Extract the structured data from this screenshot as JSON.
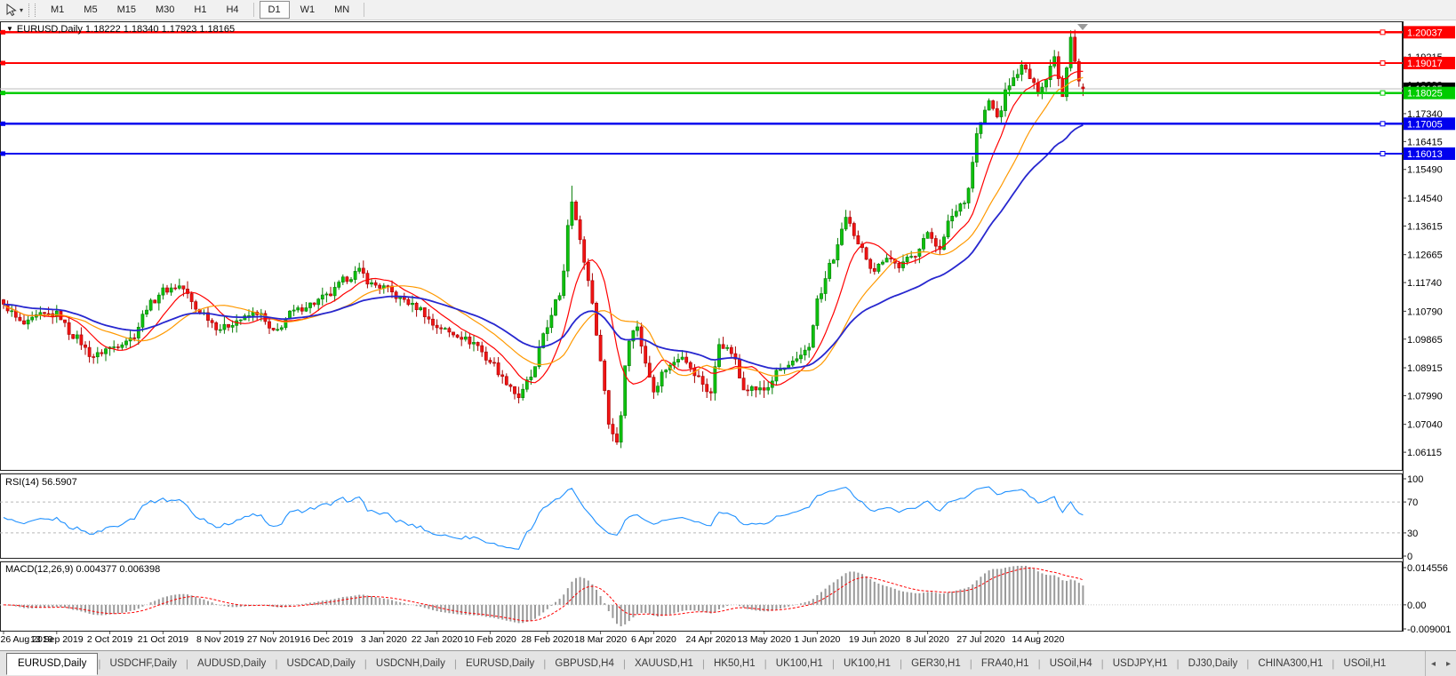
{
  "toolbar": {
    "tool_icon": "cursor-pointer-icon",
    "timeframes": [
      {
        "label": "M1",
        "active": false
      },
      {
        "label": "M5",
        "active": false
      },
      {
        "label": "M15",
        "active": false
      },
      {
        "label": "M30",
        "active": false
      },
      {
        "label": "H1",
        "active": false
      },
      {
        "label": "H4",
        "active": false
      },
      {
        "label": "D1",
        "active": true
      },
      {
        "label": "W1",
        "active": false
      },
      {
        "label": "MN",
        "active": false
      }
    ]
  },
  "chart": {
    "title_line": "EURUSD,Daily 1.18222 1.18340 1.17923 1.18165",
    "symbol": "EURUSD",
    "period": "Daily"
  },
  "indicators": {
    "rsi": {
      "label": "RSI(14) 56.5907",
      "value": 56.5907,
      "color": "#1e90ff",
      "axis": [
        {
          "value": 100,
          "label": "100"
        },
        {
          "value": 70,
          "label": "70"
        },
        {
          "value": 30,
          "label": "30"
        },
        {
          "value": 0,
          "label": "0"
        }
      ],
      "dashed_levels": [
        70,
        30
      ]
    },
    "macd": {
      "label": "MACD(12,26,9) 0.004377 0.006398",
      "macd_value": 0.004377,
      "signal_value": 0.006398,
      "axis": [
        {
          "value": 0.014556,
          "label": "0.014556"
        },
        {
          "value": 0,
          "label": "0.00"
        },
        {
          "value": -0.009001,
          "label": "-0.009001"
        }
      ],
      "hist_color": "#9a9a9a",
      "signal_color": "#ff0000"
    }
  },
  "price_axis": {
    "ticks": [
      1.19215,
      1.1829,
      1.1734,
      1.16415,
      1.1549,
      1.1454,
      1.13615,
      1.12665,
      1.1174,
      1.1079,
      1.09865,
      1.08915,
      1.0799,
      1.0704,
      1.06115
    ],
    "current_price": {
      "value": 1.18165,
      "label": "1.18165",
      "box_color": "#000000"
    }
  },
  "hlines": [
    {
      "price": 1.20037,
      "label": "1.20037",
      "color": "#ff0000"
    },
    {
      "price": 1.19017,
      "label": "1.19017",
      "color": "#ff0000"
    },
    {
      "price": 1.18025,
      "label": "1.18025",
      "color": "#00cc00"
    },
    {
      "price": 1.17005,
      "label": "1.17005",
      "color": "#0000ee"
    },
    {
      "price": 1.16013,
      "label": "1.16013",
      "color": "#0000ee"
    }
  ],
  "bid_line": {
    "price": 1.18165,
    "color": "#bdbdbd"
  },
  "date_axis": {
    "labels": [
      {
        "label": "26 Aug 2019",
        "i": 0
      },
      {
        "label": "13 Sep 2019",
        "i": 13
      },
      {
        "label": "2 Oct 2019",
        "i": 26
      },
      {
        "label": "21 Oct 2019",
        "i": 39
      },
      {
        "label": "8 Nov 2019",
        "i": 53
      },
      {
        "label": "27 Nov 2019",
        "i": 66
      },
      {
        "label": "16 Dec 2019",
        "i": 79
      },
      {
        "label": "3 Jan 2020",
        "i": 93
      },
      {
        "label": "22 Jan 2020",
        "i": 106
      },
      {
        "label": "10 Feb 2020",
        "i": 119
      },
      {
        "label": "28 Feb 2020",
        "i": 133
      },
      {
        "label": "18 Mar 2020",
        "i": 146
      },
      {
        "label": "6 Apr 2020",
        "i": 159
      },
      {
        "label": "24 Apr 2020",
        "i": 173
      },
      {
        "label": "13 May 2020",
        "i": 186
      },
      {
        "label": "1 Jun 2020",
        "i": 199
      },
      {
        "label": "19 Jun 2020",
        "i": 213
      },
      {
        "label": "8 Jul 2020",
        "i": 226
      },
      {
        "label": "27 Jul 2020",
        "i": 239
      },
      {
        "label": "14 Aug 2020",
        "i": 253
      }
    ]
  },
  "tabs": [
    {
      "label": "EURUSD,Daily",
      "active": true
    },
    {
      "label": "USDCHF,Daily",
      "active": false
    },
    {
      "label": "AUDUSD,Daily",
      "active": false
    },
    {
      "label": "USDCAD,Daily",
      "active": false
    },
    {
      "label": "USDCNH,Daily",
      "active": false
    },
    {
      "label": "EURUSD,Daily",
      "active": false
    },
    {
      "label": "GBPUSD,H4",
      "active": false
    },
    {
      "label": "XAUUSD,H1",
      "active": false
    },
    {
      "label": "HK50,H1",
      "active": false
    },
    {
      "label": "UK100,H1",
      "active": false
    },
    {
      "label": "UK100,H1",
      "active": false
    },
    {
      "label": "GER30,H1",
      "active": false
    },
    {
      "label": "FRA40,H1",
      "active": false
    },
    {
      "label": "USOil,H4",
      "active": false
    },
    {
      "label": "USDJPY,H1",
      "active": false
    },
    {
      "label": "DJ30,Daily",
      "active": false
    },
    {
      "label": "CHINA300,H1",
      "active": false
    },
    {
      "label": "USOil,H1",
      "active": false
    }
  ],
  "tab_arrows": {
    "left": "◂",
    "right": "▸"
  },
  "chart_data": {
    "type": "candlestick",
    "symbol": "EURUSD",
    "timeframe": "Daily",
    "title": "EURUSD,Daily 1.18222 1.18340 1.17923 1.18165",
    "last_ohlc": {
      "open": 1.18222,
      "high": 1.1834,
      "low": 1.17923,
      "close": 1.18165
    },
    "price_range": {
      "top": 1.204,
      "bottom": 1.055
    },
    "num_candles": 265,
    "noise": 0.0011,
    "wick": 0.0026,
    "waypoints": [
      [
        0,
        1.1095
      ],
      [
        5,
        1.1035
      ],
      [
        9,
        1.1065
      ],
      [
        13,
        1.107
      ],
      [
        17,
        1.0998
      ],
      [
        22,
        1.093
      ],
      [
        26,
        1.0958
      ],
      [
        31,
        1.0988
      ],
      [
        36,
        1.1105
      ],
      [
        39,
        1.1148
      ],
      [
        43,
        1.1162
      ],
      [
        48,
        1.1078
      ],
      [
        53,
        1.1022
      ],
      [
        58,
        1.1052
      ],
      [
        62,
        1.1075
      ],
      [
        66,
        1.1008
      ],
      [
        71,
        1.1078
      ],
      [
        75,
        1.1102
      ],
      [
        79,
        1.1128
      ],
      [
        84,
        1.1188
      ],
      [
        87,
        1.1212
      ],
      [
        90,
        1.1168
      ],
      [
        93,
        1.1158
      ],
      [
        97,
        1.1122
      ],
      [
        101,
        1.1092
      ],
      [
        106,
        1.1028
      ],
      [
        110,
        1.1005
      ],
      [
        115,
        1.0975
      ],
      [
        119,
        1.0912
      ],
      [
        123,
        1.0845
      ],
      [
        126,
        1.0795
      ],
      [
        129,
        1.0862
      ],
      [
        133,
        1.1032
      ],
      [
        136,
        1.1135
      ],
      [
        139,
        1.1452
      ],
      [
        141,
        1.131
      ],
      [
        143,
        1.118
      ],
      [
        146,
        1.0925
      ],
      [
        148,
        1.0705
      ],
      [
        150,
        1.0648
      ],
      [
        153,
        1.099
      ],
      [
        155,
        1.1032
      ],
      [
        157,
        1.0902
      ],
      [
        159,
        1.0822
      ],
      [
        162,
        1.089
      ],
      [
        166,
        1.0935
      ],
      [
        169,
        1.0868
      ],
      [
        173,
        1.0808
      ],
      [
        175,
        1.0972
      ],
      [
        178,
        1.0942
      ],
      [
        181,
        1.0828
      ],
      [
        186,
        1.0818
      ],
      [
        190,
        1.0885
      ],
      [
        194,
        1.0912
      ],
      [
        197,
        1.0962
      ],
      [
        199,
        1.1115
      ],
      [
        203,
        1.1255
      ],
      [
        206,
        1.139
      ],
      [
        209,
        1.1295
      ],
      [
        213,
        1.1218
      ],
      [
        216,
        1.1262
      ],
      [
        219,
        1.1228
      ],
      [
        222,
        1.1258
      ],
      [
        226,
        1.1332
      ],
      [
        229,
        1.1292
      ],
      [
        232,
        1.1398
      ],
      [
        235,
        1.1448
      ],
      [
        239,
        1.1705
      ],
      [
        241,
        1.1775
      ],
      [
        243,
        1.1722
      ],
      [
        246,
        1.1832
      ],
      [
        249,
        1.1888
      ],
      [
        253,
        1.1815
      ],
      [
        255,
        1.1848
      ],
      [
        257,
        1.1932
      ],
      [
        258,
        1.1852
      ],
      [
        259,
        1.1798
      ],
      [
        260,
        1.1892
      ],
      [
        261,
        1.1995
      ],
      [
        262,
        1.1912
      ],
      [
        263,
        1.1842
      ],
      [
        264,
        1.18165
      ]
    ],
    "wick_overrides": {
      "139": {
        "h": 1.1495
      },
      "150": {
        "l": 1.0636
      },
      "261": {
        "h": 1.201
      }
    },
    "candle_colors": {
      "up": "#0ec10e",
      "up_stroke": "#067d06",
      "down": "#f01414",
      "down_stroke": "#a80000"
    },
    "moving_averages": [
      {
        "type": "sma",
        "period": 10,
        "color": "#ff0000",
        "width": 1.2
      },
      {
        "type": "sma",
        "period": 21,
        "color": "#ff9900",
        "width": 1.2
      },
      {
        "type": "ema",
        "period": 40,
        "color": "#2727cf",
        "width": 1.8
      }
    ],
    "rsi_period": 14,
    "macd_params": {
      "fast": 12,
      "slow": 26,
      "signal": 9,
      "vmax": 0.014556,
      "vmin": -0.009001
    }
  }
}
